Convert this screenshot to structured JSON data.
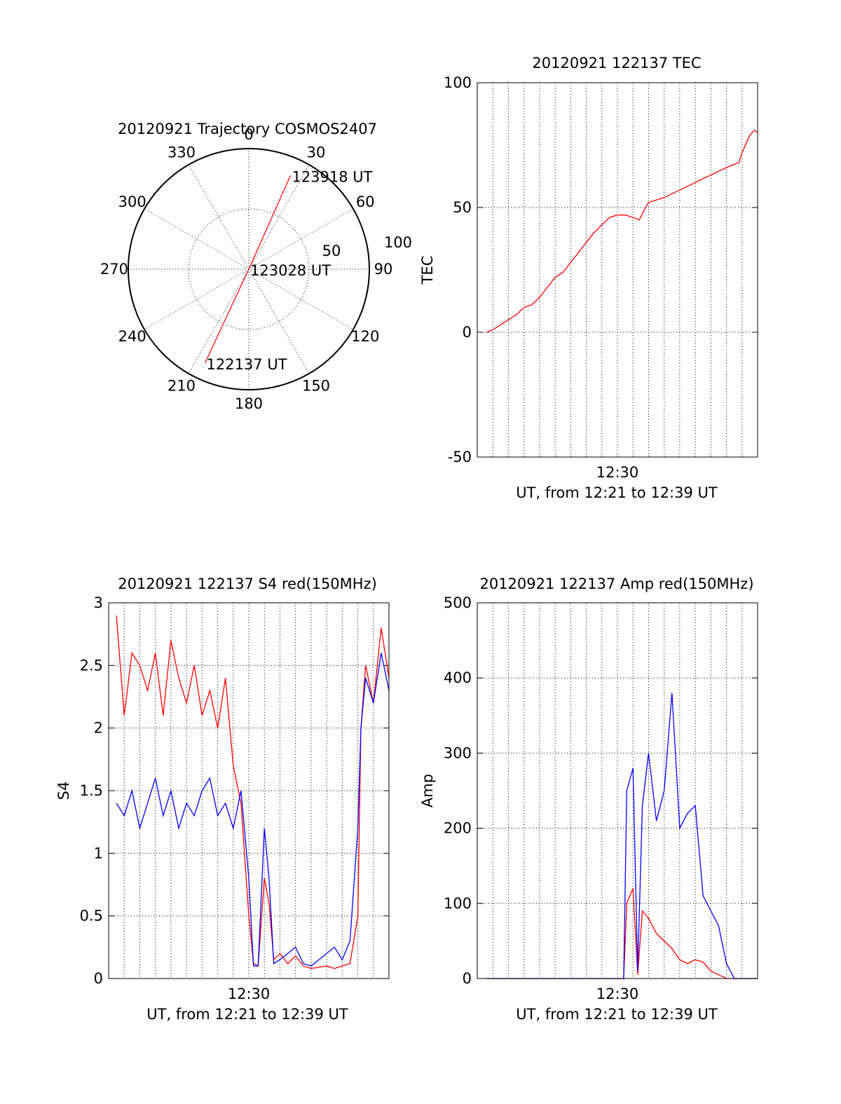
{
  "chart_data": [
    {
      "type": "polar-trajectory",
      "title": "20120921 Trajectory COSMOS2407",
      "azimuth_ticks": [
        "0",
        "30",
        "60",
        "90",
        "120",
        "150",
        "180",
        "210",
        "240",
        "270",
        "300",
        "330"
      ],
      "ring_labels": [
        "50",
        "100"
      ],
      "track_color": "#ff0000",
      "track": [
        {
          "az": 205,
          "r": 86,
          "label": "122137 UT"
        },
        {
          "az": 0,
          "r": 0,
          "label": "123028 UT"
        },
        {
          "az": 24,
          "r": 85,
          "label": "123918 UT"
        }
      ]
    },
    {
      "type": "line",
      "title": "20120921 122137 TEC",
      "xlabel": "UT, from 12:21 to 12:39 UT",
      "ylabel": "TEC",
      "xlim": [
        0,
        18
      ],
      "ylim": [
        -50,
        100
      ],
      "yticks": [
        "-50",
        "0",
        "50",
        "100"
      ],
      "xtick_labels": [
        {
          "x": 9,
          "label": "12:30"
        }
      ],
      "grid": true,
      "series": [
        {
          "color": "#ff0000",
          "x": [
            0.6,
            1,
            1.5,
            2,
            2.5,
            3,
            3.5,
            4,
            4.5,
            5,
            5.5,
            6,
            6.5,
            7,
            7.5,
            8,
            8.5,
            9,
            9.5,
            10,
            10.4,
            10.8,
            11,
            12,
            13,
            14,
            15,
            16,
            16.8,
            17,
            17.5,
            17.8,
            18
          ],
          "y": [
            0,
            1,
            3,
            5,
            7,
            10,
            11,
            14,
            18,
            22,
            24,
            28,
            32,
            36,
            40,
            43,
            46,
            47,
            47,
            46,
            45,
            50,
            52,
            54,
            57,
            60,
            63,
            66,
            68,
            72,
            79,
            81,
            80
          ]
        }
      ]
    },
    {
      "type": "line",
      "title": "20120921 122137 S4 red(150MHz)",
      "xlabel": "UT, from 12:21 to 12:39 UT",
      "ylabel": "S4",
      "xlim": [
        0,
        18
      ],
      "ylim": [
        0,
        3
      ],
      "yticks": [
        "0",
        "0.5",
        "1",
        "1.5",
        "2",
        "2.5",
        "3"
      ],
      "xtick_labels": [
        {
          "x": 9,
          "label": "12:30"
        }
      ],
      "grid": true,
      "series": [
        {
          "color": "#ff0000",
          "x": [
            0.5,
            1,
            1.5,
            2,
            2.5,
            3,
            3.5,
            4,
            4.5,
            5,
            5.5,
            6,
            6.5,
            7,
            7.5,
            8,
            8.5,
            9,
            9.3,
            9.6,
            10,
            10.3,
            10.6,
            11,
            11.5,
            12,
            12.5,
            13,
            13.5,
            14,
            14.5,
            15,
            15.5,
            16,
            16.2,
            16.5,
            17,
            17.5,
            18
          ],
          "y": [
            2.9,
            2.1,
            2.6,
            2.5,
            2.3,
            2.6,
            2.1,
            2.7,
            2.4,
            2.2,
            2.5,
            2.1,
            2.3,
            2.0,
            2.4,
            1.7,
            1.4,
            0.5,
            0.12,
            0.1,
            0.8,
            0.6,
            0.15,
            0.2,
            0.12,
            0.18,
            0.1,
            0.08,
            0.09,
            0.1,
            0.08,
            0.1,
            0.12,
            0.5,
            2.0,
            2.5,
            2.2,
            2.8,
            2.4
          ]
        },
        {
          "color": "#0000ff",
          "x": [
            0.5,
            1,
            1.5,
            2,
            2.5,
            3,
            3.5,
            4,
            4.5,
            5,
            5.5,
            6,
            6.5,
            7,
            7.5,
            8,
            8.5,
            9,
            9.3,
            9.6,
            10,
            10.3,
            10.6,
            11,
            11.5,
            12,
            12.5,
            13,
            13.5,
            14,
            14.5,
            15,
            15.5,
            16,
            16.2,
            16.5,
            17,
            17.5,
            18
          ],
          "y": [
            1.4,
            1.3,
            1.5,
            1.2,
            1.4,
            1.6,
            1.3,
            1.5,
            1.2,
            1.4,
            1.3,
            1.5,
            1.6,
            1.3,
            1.4,
            1.2,
            1.5,
            0.8,
            0.1,
            0.1,
            1.2,
            0.8,
            0.12,
            0.15,
            0.2,
            0.25,
            0.12,
            0.1,
            0.15,
            0.2,
            0.25,
            0.15,
            0.3,
            1.2,
            2.0,
            2.4,
            2.2,
            2.6,
            2.3
          ]
        }
      ]
    },
    {
      "type": "line",
      "title": "20120921 122137 Amp red(150MHz)",
      "xlabel": "UT, from 12:21 to 12:39 UT",
      "ylabel": "Amp",
      "xlim": [
        0,
        18
      ],
      "ylim": [
        0,
        500
      ],
      "yticks": [
        "0",
        "100",
        "200",
        "300",
        "400",
        "500"
      ],
      "xtick_labels": [
        {
          "x": 9,
          "label": "12:30"
        }
      ],
      "grid": true,
      "series": [
        {
          "color": "#ff0000",
          "x": [
            0.6,
            5,
            9.4,
            9.6,
            10,
            10.3,
            10.6,
            11,
            11.5,
            12,
            12.5,
            13,
            13.5,
            14,
            14.5,
            15,
            15.5,
            16,
            16.5,
            17,
            18
          ],
          "y": [
            0,
            0,
            0,
            100,
            120,
            5,
            90,
            80,
            60,
            50,
            40,
            25,
            20,
            25,
            22,
            10,
            5,
            0,
            0,
            0,
            0
          ]
        },
        {
          "color": "#0000ff",
          "x": [
            0.6,
            5,
            9.4,
            9.6,
            10,
            10.3,
            10.6,
            11,
            11.5,
            12,
            12.5,
            13,
            13.5,
            14,
            14.5,
            15,
            15.5,
            16,
            16.5,
            17,
            18
          ],
          "y": [
            0,
            0,
            0,
            250,
            280,
            10,
            230,
            300,
            210,
            250,
            380,
            200,
            220,
            230,
            110,
            90,
            70,
            20,
            0,
            0,
            0
          ]
        }
      ]
    }
  ]
}
